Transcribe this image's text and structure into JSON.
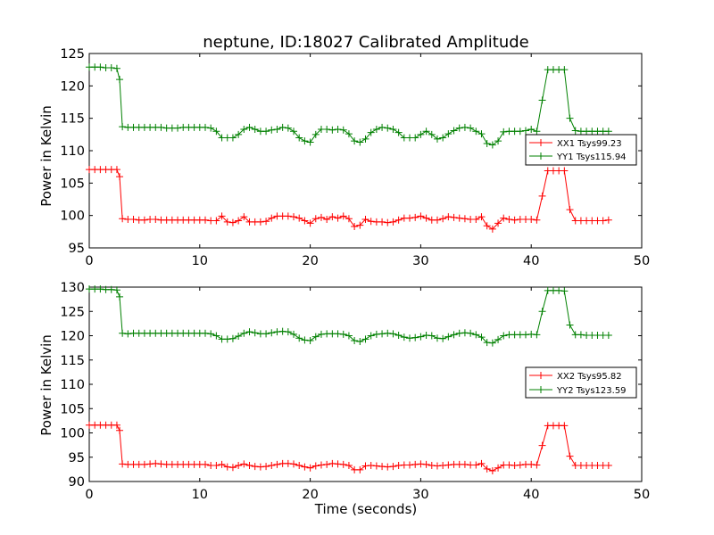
{
  "colors": {
    "xx": "#ff0000",
    "yy": "#008000"
  },
  "chart_data": [
    {
      "type": "line",
      "title": "neptune, ID:18027 Calibrated Amplitude",
      "xlabel": "",
      "ylabel": "Power in Kelvin",
      "xlim": [
        0,
        50
      ],
      "ylim": [
        95,
        125
      ],
      "xticks": [
        0,
        10,
        20,
        30,
        40,
        50
      ],
      "yticks": [
        95,
        100,
        105,
        110,
        115,
        120,
        125
      ],
      "legend": "center-right",
      "marker": "+",
      "series": [
        {
          "name": "XX1 Tsys99.23",
          "color": "#ff0000",
          "x": [
            0,
            0.5,
            1,
            1.5,
            2,
            2.5,
            2.75,
            3,
            3.5,
            4,
            4.5,
            5,
            5.5,
            6,
            6.5,
            7,
            7.5,
            8,
            8.5,
            9,
            9.5,
            10,
            10.5,
            11,
            11.5,
            12,
            12.5,
            13,
            13.5,
            14,
            14.5,
            15,
            15.5,
            16,
            16.5,
            17,
            17.5,
            18,
            18.5,
            19,
            19.5,
            20,
            20.5,
            21,
            21.5,
            22,
            22.5,
            23,
            23.5,
            24,
            24.5,
            25,
            25.5,
            26,
            26.5,
            27,
            27.5,
            28,
            28.5,
            29,
            29.5,
            30,
            30.5,
            31,
            31.5,
            32,
            32.5,
            33,
            33.5,
            34,
            34.5,
            35,
            35.5,
            36,
            36.5,
            37,
            37.5,
            38,
            38.5,
            39,
            39.5,
            40,
            40.5,
            41,
            41.5,
            42,
            42.5,
            43,
            43.5,
            44,
            44.5,
            45,
            45.5,
            46,
            46.5,
            47
          ],
          "y": [
            107.1,
            107.1,
            107.1,
            107.1,
            107.1,
            107.1,
            106,
            99.5,
            99.4,
            99.4,
            99.3,
            99.3,
            99.4,
            99.4,
            99.3,
            99.3,
            99.3,
            99.3,
            99.3,
            99.3,
            99.3,
            99.3,
            99.3,
            99.2,
            99.2,
            99.9,
            99.0,
            98.9,
            99.2,
            99.8,
            99.0,
            99.0,
            99.0,
            99.1,
            99.6,
            99.9,
            99.9,
            99.9,
            99.8,
            99.6,
            99.2,
            98.8,
            99.5,
            99.7,
            99.4,
            99.8,
            99.6,
            99.9,
            99.5,
            98.3,
            98.5,
            99.4,
            99.1,
            99.0,
            99.0,
            98.9,
            99.0,
            99.3,
            99.6,
            99.6,
            99.7,
            99.9,
            99.6,
            99.3,
            99.3,
            99.5,
            99.8,
            99.7,
            99.6,
            99.5,
            99.4,
            99.4,
            99.8,
            98.4,
            97.9,
            98.8,
            99.6,
            99.4,
            99.3,
            99.4,
            99.4,
            99.4,
            99.3,
            103,
            106.9,
            106.9,
            106.9,
            106.9,
            100.9,
            99.2,
            99.2,
            99.2,
            99.2,
            99.2,
            99.2,
            99.3
          ]
        },
        {
          "name": "YY1 Tsys115.94",
          "color": "#008000",
          "x": [
            0,
            0.5,
            1,
            1.5,
            2,
            2.5,
            2.75,
            3,
            3.5,
            4,
            4.5,
            5,
            5.5,
            6,
            6.5,
            7,
            7.5,
            8,
            8.5,
            9,
            9.5,
            10,
            10.5,
            11,
            11.5,
            12,
            12.5,
            13,
            13.5,
            14,
            14.5,
            15,
            15.5,
            16,
            16.5,
            17,
            17.5,
            18,
            18.5,
            19,
            19.5,
            20,
            20.5,
            21,
            21.5,
            22,
            22.5,
            23,
            23.5,
            24,
            24.5,
            25,
            25.5,
            26,
            26.5,
            27,
            27.5,
            28,
            28.5,
            29,
            29.5,
            30,
            30.5,
            31,
            31.5,
            32,
            32.5,
            33,
            33.5,
            34,
            34.5,
            35,
            35.5,
            36,
            36.5,
            37,
            37.5,
            38,
            38.5,
            39,
            39.5,
            40,
            40.5,
            41,
            41.5,
            42,
            42.5,
            43,
            43.5,
            44,
            44.5,
            45,
            45.5,
            46,
            46.5,
            47
          ],
          "y": [
            122.9,
            122.9,
            122.9,
            122.8,
            122.8,
            122.7,
            121,
            113.7,
            113.6,
            113.6,
            113.6,
            113.6,
            113.6,
            113.6,
            113.6,
            113.5,
            113.5,
            113.5,
            113.6,
            113.6,
            113.6,
            113.6,
            113.6,
            113.5,
            113.0,
            112.0,
            112.0,
            112.0,
            112.5,
            113.3,
            113.6,
            113.3,
            113.0,
            113.0,
            113.2,
            113.3,
            113.6,
            113.5,
            113.0,
            112.0,
            111.5,
            111.3,
            112.5,
            113.3,
            113.3,
            113.2,
            113.3,
            113.2,
            112.6,
            111.5,
            111.3,
            111.8,
            112.8,
            113.3,
            113.6,
            113.5,
            113.3,
            112.8,
            112.0,
            112.0,
            112.0,
            112.5,
            113.0,
            112.5,
            111.8,
            112.0,
            112.6,
            113.1,
            113.5,
            113.6,
            113.5,
            113.0,
            112.6,
            111.1,
            110.9,
            111.5,
            112.9,
            113.0,
            113.0,
            113.0,
            113.1,
            113.3,
            113.0,
            117.8,
            122.5,
            122.5,
            122.5,
            122.5,
            115.0,
            113.1,
            113.0,
            113.0,
            113.0,
            113.0,
            113.0,
            113.0
          ]
        }
      ]
    },
    {
      "type": "line",
      "title": "",
      "xlabel": "Time (seconds)",
      "ylabel": "Power in Kelvin",
      "xlim": [
        0,
        50
      ],
      "ylim": [
        90,
        130
      ],
      "xticks": [
        0,
        10,
        20,
        30,
        40,
        50
      ],
      "yticks": [
        90,
        95,
        100,
        105,
        110,
        115,
        120,
        125,
        130
      ],
      "legend": "center-right",
      "marker": "+",
      "series": [
        {
          "name": "XX2 Tsys95.82",
          "color": "#ff0000",
          "x": [
            0,
            0.5,
            1,
            1.5,
            2,
            2.5,
            2.75,
            3,
            3.5,
            4,
            4.5,
            5,
            5.5,
            6,
            6.5,
            7,
            7.5,
            8,
            8.5,
            9,
            9.5,
            10,
            10.5,
            11,
            11.5,
            12,
            12.5,
            13,
            13.5,
            14,
            14.5,
            15,
            15.5,
            16,
            16.5,
            17,
            17.5,
            18,
            18.5,
            19,
            19.5,
            20,
            20.5,
            21,
            21.5,
            22,
            22.5,
            23,
            23.5,
            24,
            24.5,
            25,
            25.5,
            26,
            26.5,
            27,
            27.5,
            28,
            28.5,
            29,
            29.5,
            30,
            30.5,
            31,
            31.5,
            32,
            32.5,
            33,
            33.5,
            34,
            34.5,
            35,
            35.5,
            36,
            36.5,
            37,
            37.5,
            38,
            38.5,
            39,
            39.5,
            40,
            40.5,
            41,
            41.5,
            42,
            42.5,
            43,
            43.5,
            44,
            44.5,
            45,
            45.5,
            46,
            46.5,
            47
          ],
          "y": [
            101.6,
            101.6,
            101.6,
            101.6,
            101.6,
            101.6,
            100.5,
            93.6,
            93.5,
            93.5,
            93.5,
            93.5,
            93.6,
            93.7,
            93.6,
            93.5,
            93.5,
            93.5,
            93.5,
            93.5,
            93.5,
            93.5,
            93.5,
            93.3,
            93.3,
            93.5,
            93.0,
            92.9,
            93.3,
            93.6,
            93.3,
            93.1,
            93.0,
            93.1,
            93.3,
            93.5,
            93.7,
            93.7,
            93.6,
            93.3,
            93.0,
            92.8,
            93.2,
            93.4,
            93.5,
            93.7,
            93.6,
            93.5,
            93.3,
            92.4,
            92.4,
            93.2,
            93.3,
            93.2,
            93.1,
            93.0,
            93.1,
            93.3,
            93.4,
            93.4,
            93.5,
            93.6,
            93.5,
            93.3,
            93.2,
            93.3,
            93.4,
            93.5,
            93.5,
            93.5,
            93.4,
            93.4,
            93.7,
            92.6,
            92.2,
            92.8,
            93.4,
            93.4,
            93.3,
            93.4,
            93.5,
            93.5,
            93.4,
            97.4,
            101.5,
            101.5,
            101.5,
            101.5,
            95.2,
            93.3,
            93.3,
            93.3,
            93.3,
            93.3,
            93.3,
            93.3
          ]
        },
        {
          "name": "YY2 Tsys123.59",
          "color": "#008000",
          "x": [
            0,
            0.5,
            1,
            1.5,
            2,
            2.5,
            2.75,
            3,
            3.5,
            4,
            4.5,
            5,
            5.5,
            6,
            6.5,
            7,
            7.5,
            8,
            8.5,
            9,
            9.5,
            10,
            10.5,
            11,
            11.5,
            12,
            12.5,
            13,
            13.5,
            14,
            14.5,
            15,
            15.5,
            16,
            16.5,
            17,
            17.5,
            18,
            18.5,
            19,
            19.5,
            20,
            20.5,
            21,
            21.5,
            22,
            22.5,
            23,
            23.5,
            24,
            24.5,
            25,
            25.5,
            26,
            26.5,
            27,
            27.5,
            28,
            28.5,
            29,
            29.5,
            30,
            30.5,
            31,
            31.5,
            32,
            32.5,
            33,
            33.5,
            34,
            34.5,
            35,
            35.5,
            36,
            36.5,
            37,
            37.5,
            38,
            38.5,
            39,
            39.5,
            40,
            40.5,
            41,
            41.5,
            42,
            42.5,
            43,
            43.5,
            44,
            44.5,
            45,
            45.5,
            46,
            46.5,
            47
          ],
          "y": [
            129.6,
            129.6,
            129.6,
            129.5,
            129.5,
            129.4,
            128,
            120.5,
            120.4,
            120.5,
            120.5,
            120.5,
            120.5,
            120.5,
            120.5,
            120.5,
            120.5,
            120.5,
            120.5,
            120.5,
            120.5,
            120.5,
            120.5,
            120.4,
            120.0,
            119.3,
            119.3,
            119.4,
            119.9,
            120.5,
            120.8,
            120.6,
            120.4,
            120.4,
            120.6,
            120.8,
            120.9,
            120.8,
            120.3,
            119.5,
            119.1,
            119.0,
            119.8,
            120.3,
            120.4,
            120.4,
            120.4,
            120.3,
            120.0,
            119.0,
            118.8,
            119.3,
            120.0,
            120.3,
            120.4,
            120.5,
            120.4,
            120.1,
            119.7,
            119.5,
            119.6,
            119.8,
            120.1,
            120.0,
            119.5,
            119.4,
            119.8,
            120.2,
            120.5,
            120.6,
            120.5,
            120.2,
            119.7,
            118.6,
            118.5,
            119.2,
            120.0,
            120.2,
            120.2,
            120.2,
            120.2,
            120.3,
            120.2,
            125,
            129.3,
            129.3,
            129.3,
            129.2,
            122.2,
            120.2,
            120.2,
            120.1,
            120.1,
            120.1,
            120.1,
            120.1
          ]
        }
      ]
    }
  ]
}
